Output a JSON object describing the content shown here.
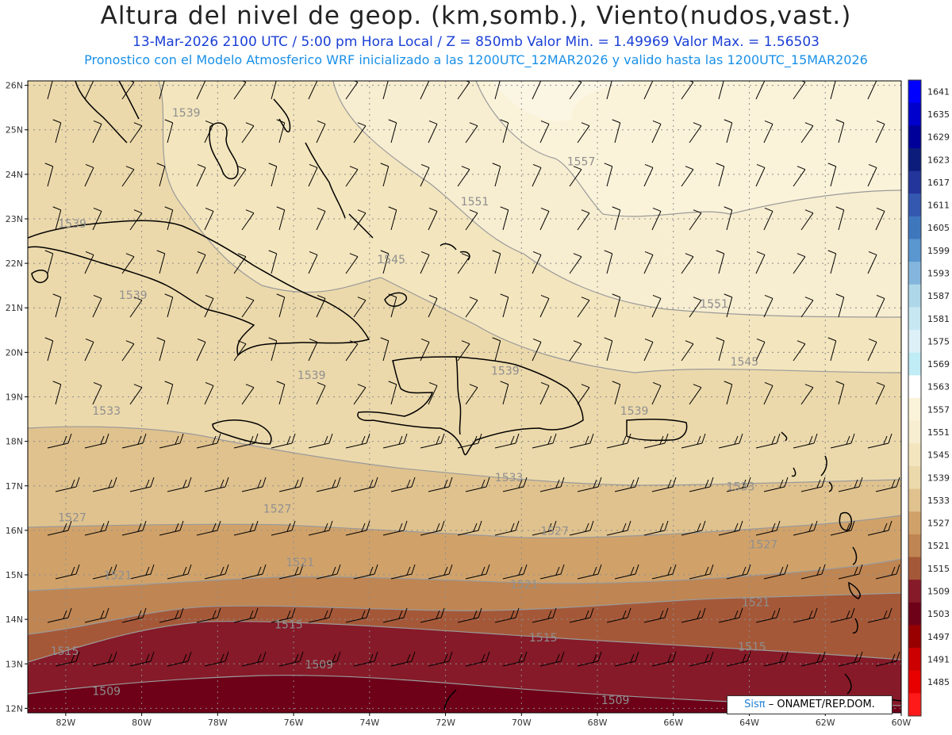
{
  "header": {
    "title": "Altura del nivel de geop. (km,somb.), Viento(nudos,vast.)",
    "subtitle": "13-Mar-2026  2100 UTC / 5:00 pm Hora Local / Z = 850mb     Valor Min. = 1.49969  Valor Max. = 1.56503",
    "info": "Pronostico con el Modelo Atmosferico WRF inicializado a las 1200UTC_12MAR2026 y valido hasta las  1200UTC_15MAR2026"
  },
  "map": {
    "lat_labels": [
      "26N",
      "25N",
      "24N",
      "23N",
      "22N",
      "21N",
      "20N",
      "19N",
      "18N",
      "17N",
      "16N",
      "15N",
      "14N",
      "13N",
      "12N"
    ],
    "lon_labels": [
      "82W",
      "80W",
      "78W",
      "76W",
      "74W",
      "72W",
      "70W",
      "68W",
      "66W",
      "64W",
      "62W",
      "60W"
    ],
    "contour_labels": [
      {
        "text": "1539",
        "lon": -79.2,
        "lat": 25.3
      },
      {
        "text": "1539",
        "lon": -82.2,
        "lat": 22.8
      },
      {
        "text": "1539",
        "lon": -80.6,
        "lat": 21.2
      },
      {
        "text": "1545",
        "lon": -73.8,
        "lat": 22.0
      },
      {
        "text": "1551",
        "lon": -71.6,
        "lat": 23.3
      },
      {
        "text": "1557",
        "lon": -68.8,
        "lat": 24.2
      },
      {
        "text": "1551",
        "lon": -65.3,
        "lat": 21.0
      },
      {
        "text": "1545",
        "lon": -64.5,
        "lat": 19.7
      },
      {
        "text": "1539",
        "lon": -75.9,
        "lat": 19.4
      },
      {
        "text": "1539",
        "lon": -70.8,
        "lat": 19.5
      },
      {
        "text": "1539",
        "lon": -67.4,
        "lat": 18.6
      },
      {
        "text": "1533",
        "lon": -81.3,
        "lat": 18.6
      },
      {
        "text": "1533",
        "lon": -70.7,
        "lat": 17.1
      },
      {
        "text": "1533",
        "lon": -64.6,
        "lat": 16.9
      },
      {
        "text": "1527",
        "lon": -82.2,
        "lat": 16.2
      },
      {
        "text": "1527",
        "lon": -76.8,
        "lat": 16.4
      },
      {
        "text": "1527",
        "lon": -69.5,
        "lat": 15.9
      },
      {
        "text": "1527",
        "lon": -64.0,
        "lat": 15.6
      },
      {
        "text": "1521",
        "lon": -81.0,
        "lat": 14.9
      },
      {
        "text": "1521",
        "lon": -76.2,
        "lat": 15.2
      },
      {
        "text": "1521",
        "lon": -70.3,
        "lat": 14.7
      },
      {
        "text": "1521",
        "lon": -64.2,
        "lat": 14.3
      },
      {
        "text": "1515",
        "lon": -76.5,
        "lat": 13.8
      },
      {
        "text": "1515",
        "lon": -82.4,
        "lat": 13.2
      },
      {
        "text": "1515",
        "lon": -69.8,
        "lat": 13.5
      },
      {
        "text": "1515",
        "lon": -64.3,
        "lat": 13.3
      },
      {
        "text": "1509",
        "lon": -75.7,
        "lat": 12.9
      },
      {
        "text": "1509",
        "lon": -81.3,
        "lat": 12.3
      },
      {
        "text": "1509",
        "lon": -67.9,
        "lat": 12.1
      }
    ]
  },
  "colorbar": {
    "levels": [
      {
        "label": "1641",
        "color": "#0000ff"
      },
      {
        "label": "1635",
        "color": "#0000cc"
      },
      {
        "label": "1629",
        "color": "#000099"
      },
      {
        "label": "1623",
        "color": "#0c1c7a"
      },
      {
        "label": "1617",
        "color": "#23349a"
      },
      {
        "label": "1611",
        "color": "#3458b0"
      },
      {
        "label": "1605",
        "color": "#3f77bd"
      },
      {
        "label": "1599",
        "color": "#5a96cf"
      },
      {
        "label": "1593",
        "color": "#84b6dd"
      },
      {
        "label": "1587",
        "color": "#aed8ea"
      },
      {
        "label": "1581",
        "color": "#c7e7f2"
      },
      {
        "label": "1575",
        "color": "#ddf0f7"
      },
      {
        "label": "1569",
        "color": "#c0ecf6"
      },
      {
        "label": "1563",
        "color": "#ffffff"
      },
      {
        "label": "1557",
        "color": "#fbf3d9"
      },
      {
        "label": "1551",
        "color": "#f7edd0"
      },
      {
        "label": "1545",
        "color": "#f3e5bd"
      },
      {
        "label": "1539",
        "color": "#ecd9ab"
      },
      {
        "label": "1533",
        "color": "#e0c28e"
      },
      {
        "label": "1527",
        "color": "#d0a26a"
      },
      {
        "label": "1521",
        "color": "#bf8552"
      },
      {
        "label": "1515",
        "color": "#a55838"
      },
      {
        "label": "1509",
        "color": "#861a28"
      },
      {
        "label": "1503",
        "color": "#6e0018"
      },
      {
        "label": "1497",
        "color": "#980000"
      },
      {
        "label": "1491",
        "color": "#cc0000"
      },
      {
        "label": "1485",
        "color": "#e60000"
      },
      {
        "label": "",
        "color": "#ff1a1a"
      }
    ]
  },
  "credit": {
    "logo": "Sisπ",
    "text": "– ONAMET/REP.DOM."
  }
}
